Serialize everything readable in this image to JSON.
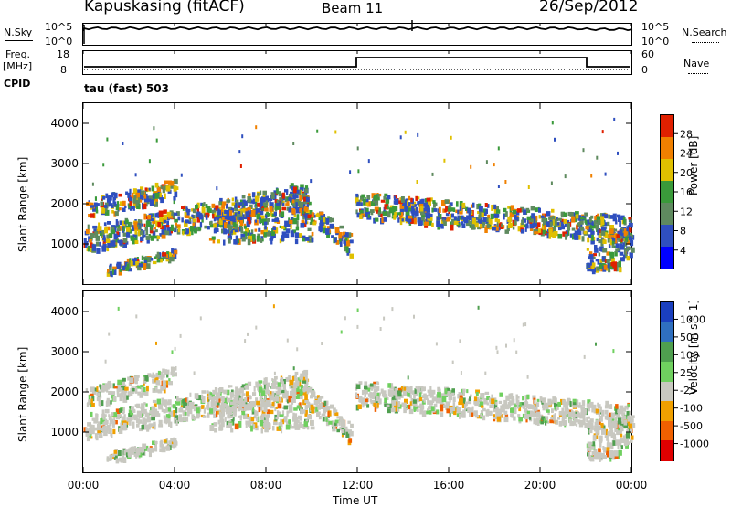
{
  "header": {
    "station": "Kapuskasing (fitACF)",
    "beam": "Beam 11",
    "date": "26/Sep/2012"
  },
  "sky_panel": {
    "left_label": "N.Sky",
    "left_ticks": [
      "10^5",
      "10^0"
    ],
    "right_label": "N.Search",
    "right_ticks": [
      "10^5",
      "10^0"
    ]
  },
  "freq_panel": {
    "left_label_1": "Freq.",
    "left_label_2": "[MHz]",
    "left_ticks": [
      "18",
      "8"
    ],
    "right_label": "Nave",
    "right_ticks": [
      "60",
      "0"
    ],
    "cpid_label": "CPID",
    "mode_label": "tau (fast) 503"
  },
  "chart_data": [
    {
      "type": "heatmap",
      "title": "",
      "xlabel": "Time UT",
      "ylabel": "Slant Range [km]",
      "x_ticks": [
        "00:00",
        "04:00",
        "08:00",
        "12:00",
        "16:00",
        "20:00",
        "00:00"
      ],
      "xlim_hours": [
        0,
        24
      ],
      "y_ticks": [
        1000,
        2000,
        3000,
        4000
      ],
      "ylim": [
        0,
        4500
      ],
      "colorbar_label": "Power [dB]",
      "colorbar_ticks": [
        4,
        8,
        12,
        16,
        20,
        24,
        28
      ],
      "colorbar_colors": [
        "#0000ff",
        "#2f4fbf",
        "#5f8a5f",
        "#3a9a3a",
        "#e0c000",
        "#f08000",
        "#e02000"
      ]
    },
    {
      "type": "heatmap",
      "title": "",
      "xlabel": "Time UT",
      "ylabel": "Slant Range [km]",
      "x_ticks": [
        "00:00",
        "04:00",
        "08:00",
        "12:00",
        "16:00",
        "20:00",
        "00:00"
      ],
      "xlim_hours": [
        0,
        24
      ],
      "y_ticks": [
        1000,
        2000,
        3000,
        4000
      ],
      "ylim": [
        0,
        4500
      ],
      "colorbar_label": "Velocity [m s^-1]",
      "colorbar_ticks": [
        1000,
        500,
        100,
        25,
        -25,
        -100,
        -500,
        -1000
      ],
      "colorbar_colors": [
        "#1a3fbf",
        "#2f6fbf",
        "#4f9f4f",
        "#6fd05f",
        "#c8c8c0",
        "#f0a000",
        "#f06000",
        "#e00000"
      ]
    }
  ],
  "x_axis_title": "Time UT"
}
